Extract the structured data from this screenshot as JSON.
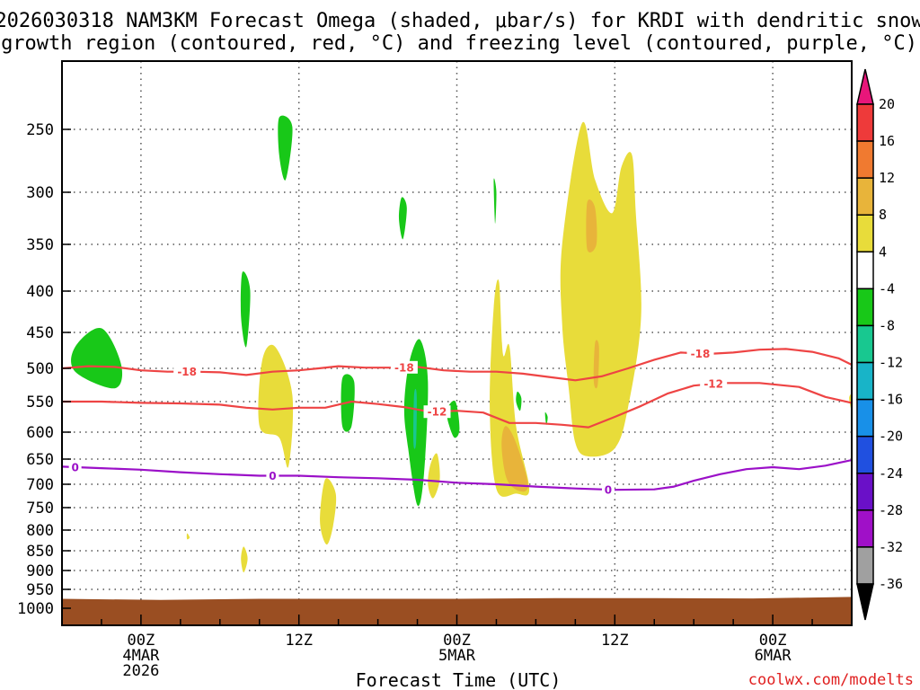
{
  "chart_data": {
    "type": "contour-cross-section",
    "title_lines": [
      "2026030318 NAM3KM Forecast Omega (shaded, μbar/s) for KRDI with dendritic snow",
      "growth region (contoured, red, °C) and freezing level (contoured, purple, °C)"
    ],
    "xlabel": "Forecast Time (UTC)",
    "x_range_hours": [
      0,
      60
    ],
    "y_range_hpa": [
      1050,
      200
    ],
    "y_ticks": [
      250,
      300,
      350,
      400,
      450,
      500,
      550,
      600,
      650,
      700,
      750,
      800,
      850,
      900,
      950,
      1000
    ],
    "x_ticks": [
      {
        "hour": 6,
        "lines": [
          "00Z",
          "4MAR",
          "2026"
        ]
      },
      {
        "hour": 18,
        "lines": [
          "12Z"
        ]
      },
      {
        "hour": 30,
        "lines": [
          "00Z",
          "5MAR"
        ]
      },
      {
        "hour": 42,
        "lines": [
          "12Z"
        ]
      },
      {
        "hour": 54,
        "lines": [
          "00Z",
          "6MAR"
        ]
      }
    ],
    "colorbar": {
      "labels": [
        "20",
        "16",
        "12",
        "8",
        "4",
        "-4",
        "-8",
        "-12",
        "-16",
        "-20",
        "-24",
        "-28",
        "-32",
        "-36"
      ],
      "colors": [
        "#e8167a",
        "#ee3a3a",
        "#f07a30",
        "#e8b43a",
        "#e8dc3a",
        "#ffffff",
        "#18c818",
        "#18c890",
        "#18b4c8",
        "#1890e8",
        "#2050e0",
        "#6a10c8",
        "#a010c8",
        "#a0a0a0",
        "#000000"
      ]
    },
    "surface_pressure_hpa": [
      975,
      978,
      975,
      975,
      975,
      973,
      973,
      974,
      970
    ],
    "contours": [
      {
        "name": "minus18",
        "label": "-18",
        "color": "#ee4444",
        "label_hours": [
          9.5,
          26,
          48.5
        ],
        "points": [
          [
            0,
            500
          ],
          [
            2,
            497
          ],
          [
            4,
            498
          ],
          [
            6,
            503
          ],
          [
            8,
            505
          ],
          [
            10,
            505
          ],
          [
            12,
            506
          ],
          [
            14,
            510
          ],
          [
            16,
            505
          ],
          [
            18,
            503
          ],
          [
            19.5,
            500
          ],
          [
            21,
            497
          ],
          [
            23,
            499
          ],
          [
            25,
            499
          ],
          [
            27,
            498
          ],
          [
            29,
            503
          ],
          [
            31,
            505
          ],
          [
            33,
            505
          ],
          [
            35,
            508
          ],
          [
            37,
            513
          ],
          [
            39,
            518
          ],
          [
            41,
            512
          ],
          [
            43,
            500
          ],
          [
            45,
            488
          ],
          [
            47,
            478
          ],
          [
            49,
            480
          ],
          [
            51,
            478
          ],
          [
            53,
            474
          ],
          [
            55,
            473
          ],
          [
            57,
            477
          ],
          [
            59,
            486
          ],
          [
            60,
            495
          ]
        ]
      },
      {
        "name": "minus12",
        "label": "-12",
        "color": "#ee4444",
        "label_hours": [
          28.5,
          49.5
        ],
        "points": [
          [
            0,
            550
          ],
          [
            3,
            550
          ],
          [
            6,
            552
          ],
          [
            9,
            553
          ],
          [
            12,
            555
          ],
          [
            14,
            560
          ],
          [
            16,
            563
          ],
          [
            18,
            560
          ],
          [
            20,
            560
          ],
          [
            22,
            550
          ],
          [
            24,
            554
          ],
          [
            26,
            559
          ],
          [
            28,
            567
          ],
          [
            30,
            565
          ],
          [
            32,
            568
          ],
          [
            34,
            585
          ],
          [
            36,
            585
          ],
          [
            38,
            588
          ],
          [
            40,
            592
          ],
          [
            42,
            575
          ],
          [
            44,
            557
          ],
          [
            46,
            538
          ],
          [
            48,
            526
          ],
          [
            50,
            522
          ],
          [
            53,
            522
          ],
          [
            56,
            528
          ],
          [
            58,
            543
          ],
          [
            60,
            552
          ]
        ]
      },
      {
        "name": "zero",
        "label": "0",
        "color": "#9b10c8",
        "label_hours": [
          1,
          16,
          41.5
        ],
        "points": [
          [
            0,
            665
          ],
          [
            3,
            668
          ],
          [
            6,
            671
          ],
          [
            9,
            676
          ],
          [
            12,
            680
          ],
          [
            15,
            683
          ],
          [
            18,
            683
          ],
          [
            21,
            686
          ],
          [
            24,
            688
          ],
          [
            27,
            691
          ],
          [
            30,
            697
          ],
          [
            33,
            700
          ],
          [
            36,
            705
          ],
          [
            39,
            709
          ],
          [
            42,
            712
          ],
          [
            45,
            711
          ],
          [
            46.5,
            705
          ],
          [
            48,
            693
          ],
          [
            50,
            680
          ],
          [
            52,
            670
          ],
          [
            54,
            666
          ],
          [
            56,
            670
          ],
          [
            58,
            663
          ],
          [
            60,
            652
          ]
        ]
      }
    ],
    "omega_blobs": [
      {
        "level": "-4",
        "color": "#18c818",
        "points": [
          [
            1,
            470
          ],
          [
            3,
            445
          ],
          [
            4.5,
            495
          ],
          [
            4,
            530
          ],
          [
            1,
            505
          ]
        ]
      },
      {
        "level": "-4",
        "color": "#18c818",
        "points": [
          [
            16.5,
            240
          ],
          [
            17.5,
            248
          ],
          [
            17,
            290
          ],
          [
            16.5,
            270
          ]
        ]
      },
      {
        "level": "-4",
        "color": "#18c818",
        "points": [
          [
            13.7,
            380
          ],
          [
            14.3,
            400
          ],
          [
            14,
            470
          ],
          [
            13.6,
            430
          ]
        ]
      },
      {
        "level": "-4",
        "color": "#18c818",
        "points": [
          [
            25.8,
            305
          ],
          [
            26.2,
            315
          ],
          [
            25.9,
            345
          ],
          [
            25.6,
            325
          ]
        ]
      },
      {
        "level": "-4",
        "color": "#18c818",
        "points": [
          [
            32.8,
            290
          ],
          [
            33.0,
            300
          ],
          [
            32.9,
            330
          ]
        ]
      },
      {
        "level": "-4",
        "color": "#18c818",
        "points": [
          [
            21.3,
            515
          ],
          [
            22.2,
            520
          ],
          [
            22.0,
            590
          ],
          [
            21.3,
            590
          ]
        ]
      },
      {
        "level": "-4",
        "color": "#18c818",
        "points": [
          [
            26.4,
            490
          ],
          [
            27.2,
            460
          ],
          [
            27.8,
            520
          ],
          [
            27.5,
            680
          ],
          [
            27.0,
            745
          ],
          [
            26.3,
            630
          ],
          [
            26.0,
            560
          ]
        ]
      },
      {
        "level": "-4",
        "color": "#18c818",
        "points": [
          [
            29.3,
            560
          ],
          [
            29.9,
            550
          ],
          [
            30.2,
            595
          ],
          [
            29.8,
            610
          ],
          [
            29.3,
            580
          ]
        ]
      },
      {
        "level": "-4",
        "color": "#18c818",
        "points": [
          [
            34.6,
            535
          ],
          [
            34.9,
            545
          ],
          [
            34.8,
            565
          ],
          [
            34.5,
            550
          ]
        ]
      },
      {
        "level": "-4",
        "color": "#18c818",
        "points": [
          [
            36.7,
            568
          ],
          [
            36.9,
            575
          ],
          [
            36.8,
            588
          ]
        ]
      },
      {
        "level": "-8",
        "color": "#18c890",
        "points": [
          [
            26.75,
            540
          ],
          [
            26.95,
            540
          ],
          [
            26.9,
            620
          ],
          [
            26.7,
            620
          ]
        ]
      },
      {
        "level": "4",
        "color": "#e8dc3a",
        "points": [
          [
            15.2,
            490
          ],
          [
            16.2,
            470
          ],
          [
            17.5,
            540
          ],
          [
            17.2,
            665
          ],
          [
            16.5,
            610
          ],
          [
            15.0,
            590
          ]
        ]
      },
      {
        "level": "4",
        "color": "#e8dc3a",
        "points": [
          [
            20.0,
            690
          ],
          [
            20.8,
            720
          ],
          [
            20.6,
            790
          ],
          [
            20.1,
            835
          ],
          [
            19.6,
            780
          ]
        ]
      },
      {
        "level": "4",
        "color": "#e8dc3a",
        "points": [
          [
            28.0,
            660
          ],
          [
            28.5,
            640
          ],
          [
            28.7,
            690
          ],
          [
            28.2,
            730
          ],
          [
            27.8,
            700
          ]
        ]
      },
      {
        "level": "4",
        "color": "#e8dc3a",
        "points": [
          [
            33.5,
            480
          ],
          [
            34.0,
            470
          ],
          [
            34.5,
            590
          ],
          [
            35.5,
            710
          ],
          [
            34.5,
            720
          ],
          [
            33.0,
            710
          ],
          [
            32.5,
            560
          ],
          [
            32.8,
            420
          ],
          [
            33.2,
            390
          ]
        ]
      },
      {
        "level": "4",
        "color": "#e8dc3a",
        "points": [
          [
            38.0,
            350
          ],
          [
            39.5,
            245
          ],
          [
            40.5,
            290
          ],
          [
            41.8,
            320
          ],
          [
            42.5,
            280
          ],
          [
            43.3,
            270
          ],
          [
            43.6,
            320
          ],
          [
            44.0,
            430
          ],
          [
            43.0,
            560
          ],
          [
            42.0,
            630
          ],
          [
            40.0,
            645
          ],
          [
            39.0,
            620
          ],
          [
            38.5,
            530
          ],
          [
            38.0,
            440
          ]
        ]
      },
      {
        "level": "4",
        "color": "#e8dc3a",
        "points": [
          [
            9.5,
            808
          ],
          [
            9.7,
            818
          ],
          [
            9.5,
            822
          ]
        ]
      },
      {
        "level": "4",
        "color": "#e8dc3a",
        "points": [
          [
            13.8,
            840
          ],
          [
            14.1,
            870
          ],
          [
            13.8,
            905
          ],
          [
            13.6,
            870
          ]
        ]
      },
      {
        "level": "4",
        "color": "#e8dc3a",
        "points": [
          [
            59.8,
            545
          ],
          [
            60.0,
            540
          ],
          [
            60.0,
            565
          ]
        ]
      },
      {
        "level": "8",
        "color": "#e8b43a",
        "points": [
          [
            33.7,
            590
          ],
          [
            34.5,
            620
          ],
          [
            35.4,
            700
          ],
          [
            34.8,
            715
          ],
          [
            33.8,
            690
          ],
          [
            33.4,
            625
          ]
        ]
      },
      {
        "level": "8",
        "color": "#e8b43a",
        "points": [
          [
            39.9,
            310
          ],
          [
            40.5,
            315
          ],
          [
            40.6,
            350
          ],
          [
            39.9,
            355
          ]
        ]
      },
      {
        "level": "8",
        "color": "#e8b43a",
        "points": [
          [
            40.5,
            465
          ],
          [
            40.8,
            470
          ],
          [
            40.7,
            525
          ],
          [
            40.4,
            520
          ]
        ]
      }
    ],
    "credit": "coolwx.com/modelts"
  }
}
